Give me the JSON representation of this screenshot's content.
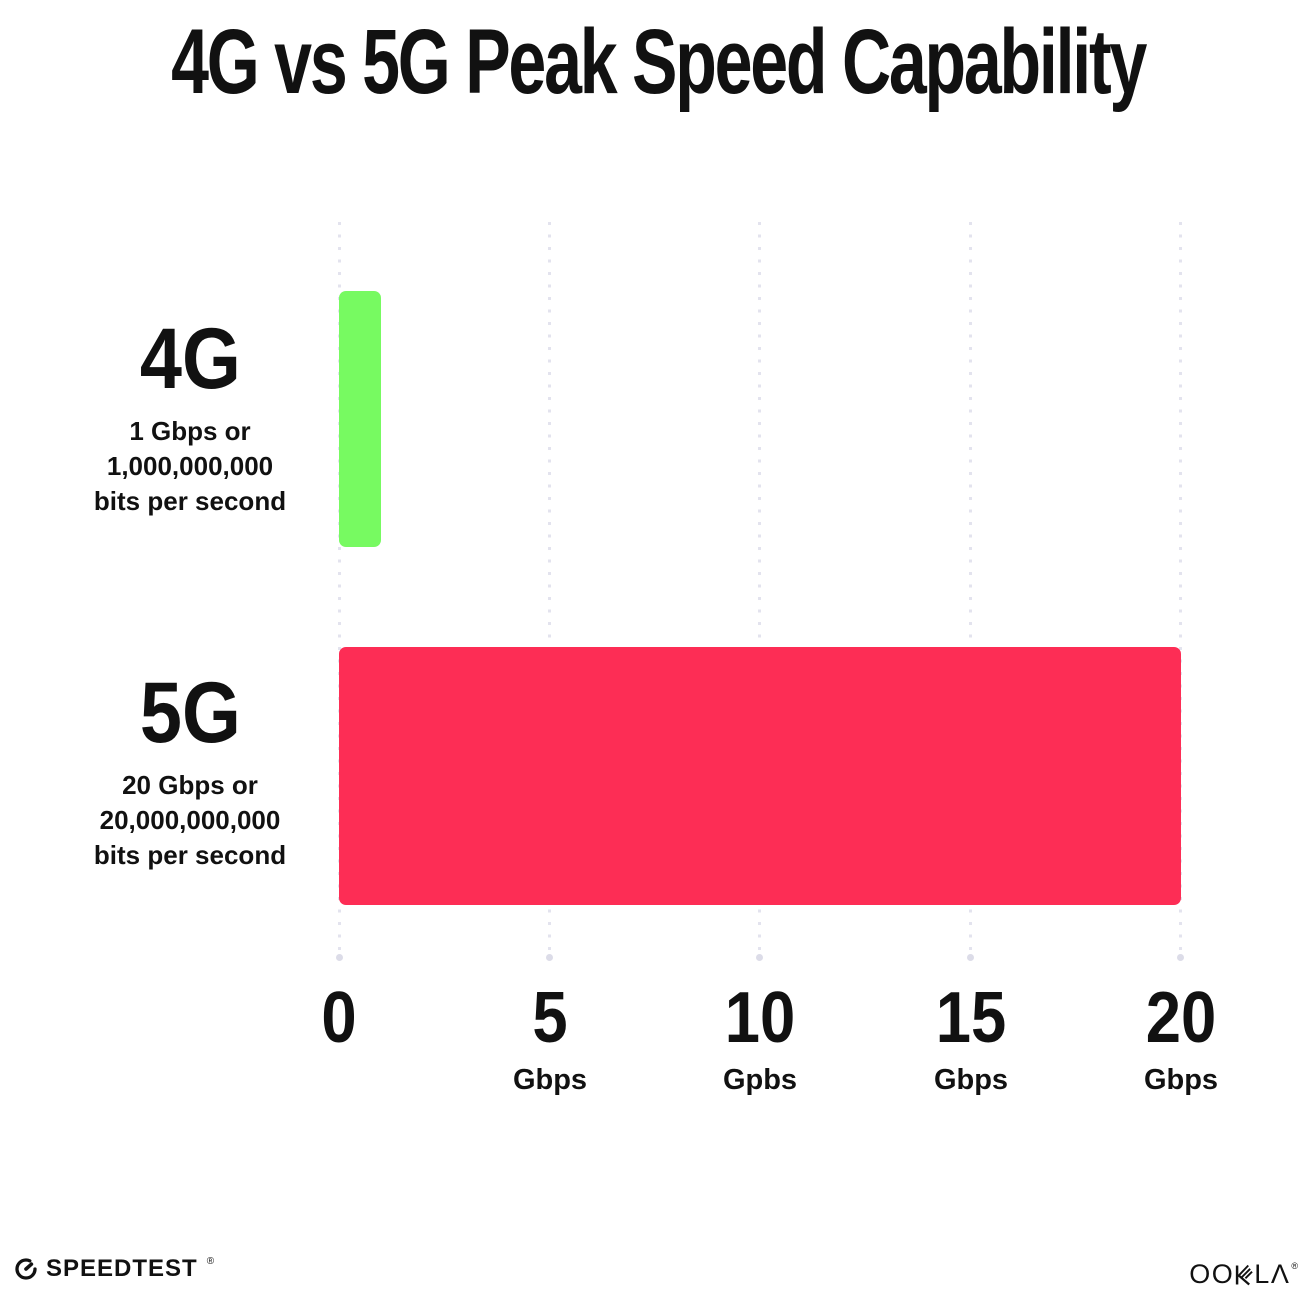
{
  "title": "4G vs 5G Peak Speed Capability",
  "chart_data": {
    "type": "bar",
    "orientation": "horizontal",
    "title": "4G vs 5G Peak Speed Capability",
    "xlim": [
      0,
      20
    ],
    "x_unit": "Gbps",
    "grid": "vertical dotted gridlines at each tick",
    "legend_position": "none",
    "rows": [
      {
        "label": "4G",
        "value": 1,
        "color": "#77FA61",
        "description_lines": [
          "1 Gbps or",
          "1,000,000,000",
          "bits per second"
        ]
      },
      {
        "label": "5G",
        "value": 20,
        "color": "#FD2D55",
        "description_lines": [
          "20 Gbps or",
          "20,000,000,000",
          "bits per second"
        ]
      }
    ],
    "x_ticks": [
      {
        "number": "0",
        "unit": ""
      },
      {
        "number": "5",
        "unit": "Gbps"
      },
      {
        "number": "10",
        "unit": "Gpbs"
      },
      {
        "number": "15",
        "unit": "Gbps"
      },
      {
        "number": "20",
        "unit": "Gbps"
      }
    ]
  },
  "footer": {
    "speedtest": {
      "wordmark": "SPEEDTEST",
      "trademark": "®",
      "icon": "speedometer-gauge"
    },
    "ookla": {
      "left_letters": "OO",
      "right_letters": "LΛ",
      "trademark": "®",
      "full_wordmark": "OOKLA"
    }
  },
  "colors": {
    "background": "#FFFFFF",
    "text": "#111111",
    "bar_4g": "#77FA61",
    "bar_5g": "#FD2D55",
    "gridline_dot": "#E3E3EE"
  }
}
